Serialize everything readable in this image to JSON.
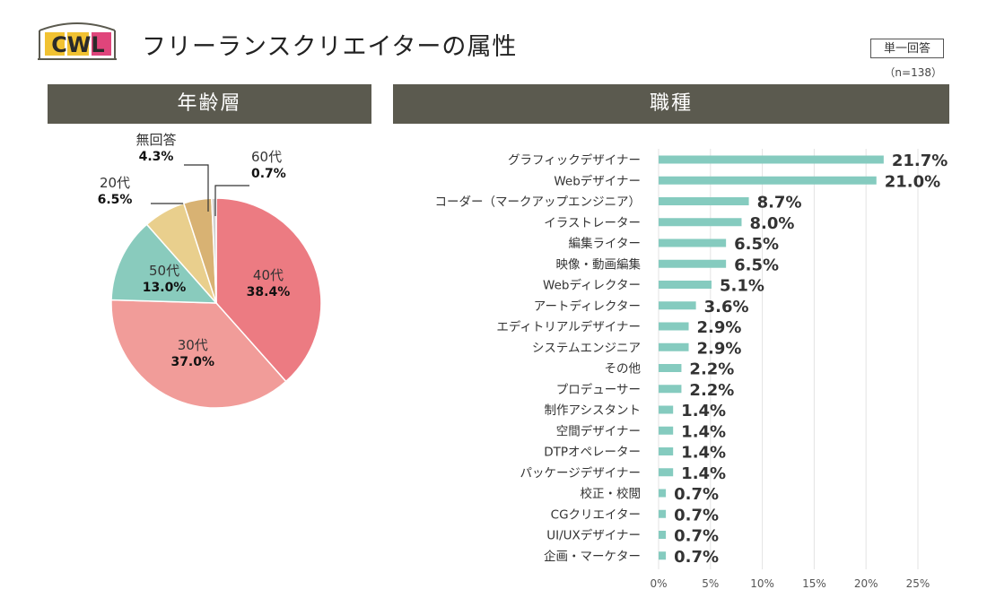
{
  "header": {
    "logo_text": "CWL",
    "title": "フリーランスクリエイターの属性",
    "answer_type": "単一回答",
    "sample_size": "（n=138）"
  },
  "sections": {
    "age": "年齢層",
    "job": "職種"
  },
  "colors": {
    "header_bg": "#5b5a4f",
    "bar": "#85cbbf",
    "pie_40s": "#ec7b82",
    "pie_30s": "#f19c99",
    "pie_50s": "#89cbbd",
    "pie_20s": "#e9cf8d",
    "pie_none": "#d8b273",
    "pie_60s": "#d0d0d0"
  },
  "chart_data": [
    {
      "type": "pie",
      "title": "年齢層",
      "slices": [
        {
          "label": "40代",
          "value": 38.4,
          "value_label": "38.4%",
          "color": "#ec7b82"
        },
        {
          "label": "30代",
          "value": 37.0,
          "value_label": "37.0%",
          "color": "#f19c99"
        },
        {
          "label": "50代",
          "value": 13.0,
          "value_label": "13.0%",
          "color": "#89cbbd"
        },
        {
          "label": "20代",
          "value": 6.5,
          "value_label": "6.5%",
          "color": "#e9cf8d"
        },
        {
          "label": "無回答",
          "value": 4.3,
          "value_label": "4.3%",
          "color": "#d8b273"
        },
        {
          "label": "60代",
          "value": 0.7,
          "value_label": "0.7%",
          "color": "#d0d0d0"
        }
      ],
      "start_angle_deg": 0,
      "direction": "clockwise"
    },
    {
      "type": "bar",
      "orientation": "horizontal",
      "title": "職種",
      "categories": [
        "グラフィックデザイナー",
        "Webデザイナー",
        "コーダー（マークアップエンジニア）",
        "イラストレーター",
        "編集ライター",
        "映像・動画編集",
        "Webディレクター",
        "アートディレクター",
        "エディトリアルデザイナー",
        "システムエンジニア",
        "その他",
        "プロデューサー",
        "制作アシスタント",
        "空間デザイナー",
        "DTPオペレーター",
        "パッケージデザイナー",
        "校正・校閲",
        "CGクリエイター",
        "UI/UXデザイナー",
        "企画・マーケター"
      ],
      "values": [
        21.7,
        21.0,
        8.7,
        8.0,
        6.5,
        6.5,
        5.1,
        3.6,
        2.9,
        2.9,
        2.2,
        2.2,
        1.4,
        1.4,
        1.4,
        1.4,
        0.7,
        0.7,
        0.7,
        0.7
      ],
      "value_labels": [
        "21.7%",
        "21.0%",
        "8.7%",
        "8.0%",
        "6.5%",
        "6.5%",
        "5.1%",
        "3.6%",
        "2.9%",
        "2.9%",
        "2.2%",
        "2.2%",
        "1.4%",
        "1.4%",
        "1.4%",
        "1.4%",
        "0.7%",
        "0.7%",
        "0.7%",
        "0.7%"
      ],
      "xlim": [
        0,
        25
      ],
      "xticks": [
        0,
        5,
        10,
        15,
        20,
        25
      ],
      "xtick_labels": [
        "0%",
        "5%",
        "10%",
        "15%",
        "20%",
        "25%"
      ],
      "grid": true
    }
  ]
}
